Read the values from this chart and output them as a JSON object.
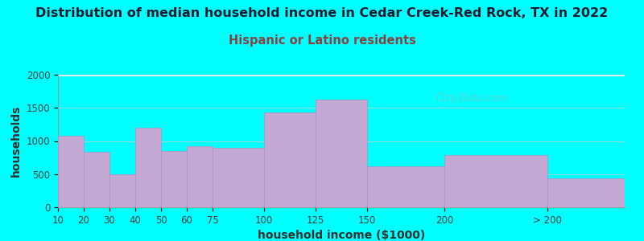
{
  "title": "Distribution of median household income in Cedar Creek-Red Rock, TX in 2022",
  "subtitle": "Hispanic or Latino residents",
  "xlabel": "household income ($1000)",
  "ylabel": "households",
  "background_color": "#00FFFF",
  "bar_color": "#C4A8D4",
  "bar_edge_color": "#b090c0",
  "categories": [
    "10",
    "20",
    "30",
    "40",
    "50",
    "60",
    "75",
    "100",
    "125",
    "150",
    "200",
    "> 200"
  ],
  "values": [
    1075,
    840,
    500,
    1200,
    850,
    920,
    900,
    1430,
    1620,
    620,
    790,
    440
  ],
  "ylim": [
    0,
    2000
  ],
  "yticks": [
    0,
    500,
    1000,
    1500,
    2000
  ],
  "title_fontsize": 11.5,
  "subtitle_fontsize": 10.5,
  "axis_label_fontsize": 10,
  "tick_fontsize": 8.5,
  "title_color": "#1a1a2e",
  "subtitle_color": "#8B4040",
  "watermark_text": "City-Data.com",
  "watermark_color": "#aaaaaa",
  "grad_top_color": "#d8f0dc",
  "grad_bot_color": "#ffffff",
  "lefts": [
    0,
    1,
    2,
    3,
    4,
    5,
    6,
    8,
    10,
    12,
    15,
    19
  ],
  "widths": [
    1,
    1,
    1,
    1,
    1,
    1,
    2,
    2,
    2,
    3,
    4,
    3
  ],
  "xlim": [
    0,
    22
  ],
  "tick_positions": [
    0,
    1,
    2,
    3,
    4,
    5,
    6,
    8,
    10,
    12,
    15,
    19
  ]
}
